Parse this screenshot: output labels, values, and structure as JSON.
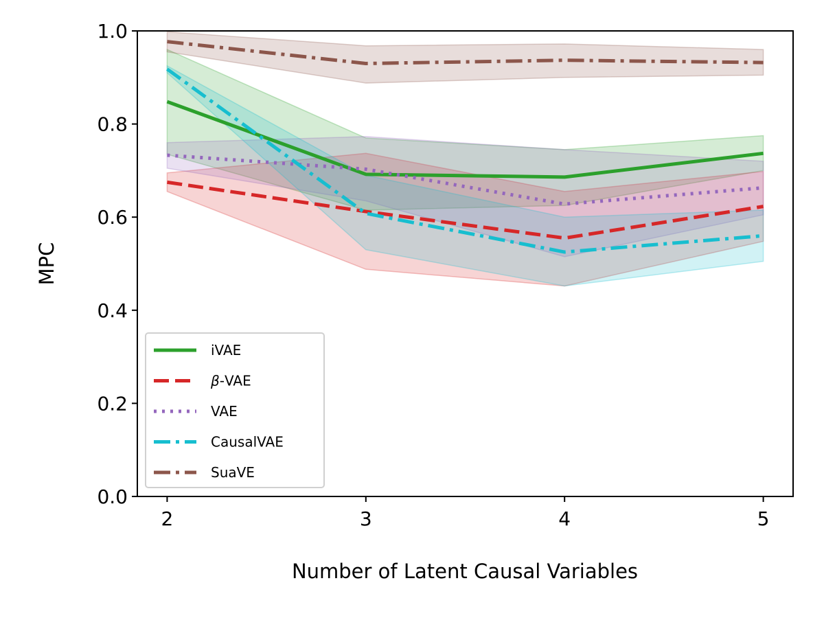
{
  "chart_data": {
    "type": "line",
    "title": "",
    "xlabel": "Number of Latent Causal Variables",
    "ylabel": "MPC",
    "x": [
      2,
      3,
      4,
      5
    ],
    "xlim": [
      1.85,
      5.15
    ],
    "ylim": [
      0.0,
      1.0
    ],
    "xticks": [
      2,
      3,
      4,
      5
    ],
    "yticks": [
      0.0,
      0.2,
      0.4,
      0.6,
      0.8,
      1.0
    ],
    "xtick_labels": [
      "2",
      "3",
      "4",
      "5"
    ],
    "ytick_labels": [
      "0.0",
      "0.2",
      "0.4",
      "0.6",
      "0.8",
      "1.0"
    ],
    "grid": false,
    "legend_position": "lower-left",
    "series": [
      {
        "name": "iVAE",
        "label_prefix": "",
        "label_suffix": "iVAE",
        "color": "#2ca02c",
        "dash": "solid",
        "values": [
          0.848,
          0.692,
          0.686,
          0.737
        ],
        "lower": [
          0.735,
          0.615,
          0.625,
          0.7
        ],
        "upper": [
          0.96,
          0.77,
          0.745,
          0.775
        ]
      },
      {
        "name": "β-VAE",
        "label_prefix": "β",
        "label_suffix": "-VAE",
        "color": "#d62728",
        "dash": "dashed",
        "values": [
          0.675,
          0.612,
          0.555,
          0.623
        ],
        "lower": [
          0.655,
          0.488,
          0.452,
          0.548
        ],
        "upper": [
          0.695,
          0.737,
          0.655,
          0.698
        ]
      },
      {
        "name": "VAE",
        "label_prefix": "",
        "label_suffix": "VAE",
        "color": "#9467bd",
        "dash": "dotted",
        "values": [
          0.733,
          0.703,
          0.628,
          0.663
        ],
        "lower": [
          0.705,
          0.635,
          0.515,
          0.605
        ],
        "upper": [
          0.76,
          0.773,
          0.745,
          0.72
        ]
      },
      {
        "name": "CausalVAE",
        "label_prefix": "",
        "label_suffix": "CausalVAE",
        "color": "#17becf",
        "dash": "dashdot",
        "values": [
          0.918,
          0.608,
          0.525,
          0.56
        ],
        "lower": [
          0.91,
          0.53,
          0.452,
          0.505
        ],
        "upper": [
          0.925,
          0.69,
          0.6,
          0.615
        ]
      },
      {
        "name": "SuaVE",
        "label_prefix": "",
        "label_suffix": "SuaVE",
        "color": "#8c564b",
        "dash": "dashdot",
        "values": [
          0.977,
          0.93,
          0.937,
          0.932
        ],
        "lower": [
          0.955,
          0.888,
          0.9,
          0.905
        ],
        "upper": [
          0.998,
          0.968,
          0.972,
          0.96
        ]
      }
    ]
  }
}
